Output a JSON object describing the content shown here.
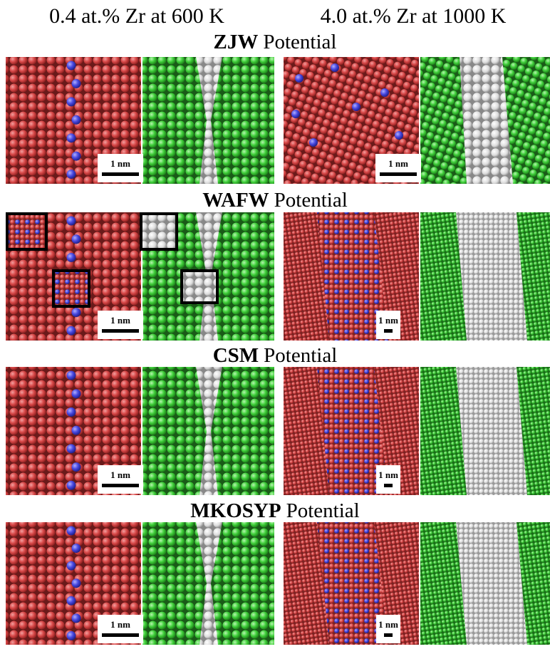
{
  "columns": [
    "0.4 at.% Zr at 600 K",
    "4.0 at.% Zr at 1000 K"
  ],
  "rows": [
    {
      "name": "ZJW",
      "suffix": "Potential",
      "scale_bars": [
        "1 nm",
        "1 nm"
      ]
    },
    {
      "name": "WAFW",
      "suffix": "Potential",
      "scale_bars": [
        "1 nm",
        "1 nm"
      ]
    },
    {
      "name": "CSM",
      "suffix": "Potential",
      "scale_bars": [
        "1 nm",
        "1 nm"
      ]
    },
    {
      "name": "MKOSYP",
      "suffix": "Potential",
      "scale_bars": [
        "1 nm",
        "1 nm"
      ]
    }
  ]
}
